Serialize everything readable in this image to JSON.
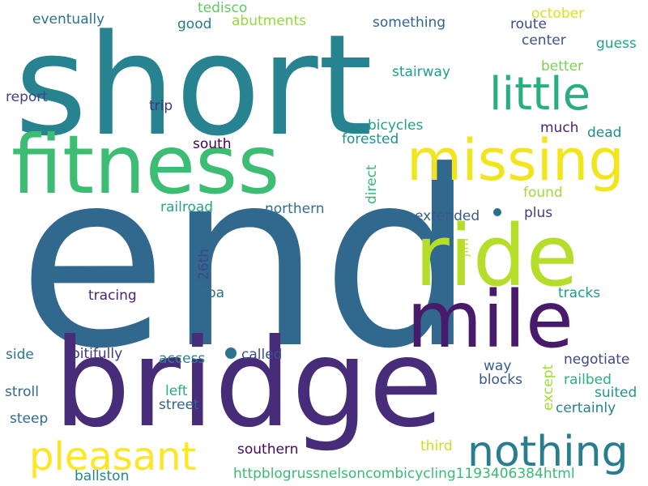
{
  "words": [
    {
      "text": "end",
      "color": "#31688e"
    },
    {
      "text": "short",
      "color": "#26838f"
    },
    {
      "text": "bridge",
      "color": "#472c7a"
    },
    {
      "text": "fitness",
      "color": "#3dbc74"
    },
    {
      "text": "ride",
      "color": "#b5de2b"
    },
    {
      "text": "mile",
      "color": "#481a6c"
    },
    {
      "text": "missing",
      "color": "#f1e51d"
    },
    {
      "text": "little",
      "color": "#29af7f"
    },
    {
      "text": "nothing",
      "color": "#287d8e"
    },
    {
      "text": "pleasant",
      "color": "#fde725"
    },
    {
      "text": "eventually",
      "color": "#2c728e"
    },
    {
      "text": "tedisco",
      "color": "#5ec962"
    },
    {
      "text": "abutments",
      "color": "#95d840"
    },
    {
      "text": "good",
      "color": "#2a788e"
    },
    {
      "text": "something",
      "color": "#33638d"
    },
    {
      "text": "october",
      "color": "#d8e219"
    },
    {
      "text": "route",
      "color": "#3e4989"
    },
    {
      "text": "center",
      "color": "#3b528b"
    },
    {
      "text": "guess",
      "color": "#20a386"
    },
    {
      "text": "better",
      "color": "#7ad151"
    },
    {
      "text": "stairway",
      "color": "#1f9e89"
    },
    {
      "text": "report",
      "color": "#414487"
    },
    {
      "text": "trip",
      "color": "#46327e"
    },
    {
      "text": "bicycles",
      "color": "#1fa188"
    },
    {
      "text": "much",
      "color": "#482374"
    },
    {
      "text": "dead",
      "color": "#238a8d"
    },
    {
      "text": "forested",
      "color": "#21918c"
    },
    {
      "text": "south",
      "color": "#440154"
    },
    {
      "text": "direct",
      "color": "#35b779"
    },
    {
      "text": "found",
      "color": "#a0da39"
    },
    {
      "text": "railroad",
      "color": "#22a884"
    },
    {
      "text": "northern",
      "color": "#2e6f8e"
    },
    {
      "text": "plus",
      "color": "#433e85"
    },
    {
      "text": "extended",
      "color": "#365c8d"
    },
    {
      "text": "jim",
      "color": "#c2df23"
    },
    {
      "text": "26th",
      "color": "#3f4788"
    },
    {
      "text": "spa",
      "color": "#2d708e"
    },
    {
      "text": "tracing",
      "color": "#482576"
    },
    {
      "text": "tracks",
      "color": "#1e9b8a"
    },
    {
      "text": "side",
      "color": "#2a768e"
    },
    {
      "text": "pitifully",
      "color": "#453781"
    },
    {
      "text": "access",
      "color": "#25848e"
    },
    {
      "text": "called",
      "color": "#3d4e8a"
    },
    {
      "text": "negotiate",
      "color": "#404688"
    },
    {
      "text": "way",
      "color": "#355f8d"
    },
    {
      "text": "except",
      "color": "#a5db36"
    },
    {
      "text": "blocks",
      "color": "#39568c"
    },
    {
      "text": "railbed",
      "color": "#2ab07f"
    },
    {
      "text": "stroll",
      "color": "#306a8e"
    },
    {
      "text": "left",
      "color": "#27ad81"
    },
    {
      "text": "suited",
      "color": "#1f968b"
    },
    {
      "text": "street",
      "color": "#33638d"
    },
    {
      "text": "certainly",
      "color": "#26828e"
    },
    {
      "text": "steep",
      "color": "#2f6b8e"
    },
    {
      "text": "southern",
      "color": "#46085c"
    },
    {
      "text": "third",
      "color": "#cae11f"
    },
    {
      "text": "ballston",
      "color": "#24878e"
    },
    {
      "text": "httpblogrussnelsoncombicycling1193406384html",
      "color": "#3aba76"
    },
    {
      "text": "",
      "color": "#2c738e"
    }
  ]
}
